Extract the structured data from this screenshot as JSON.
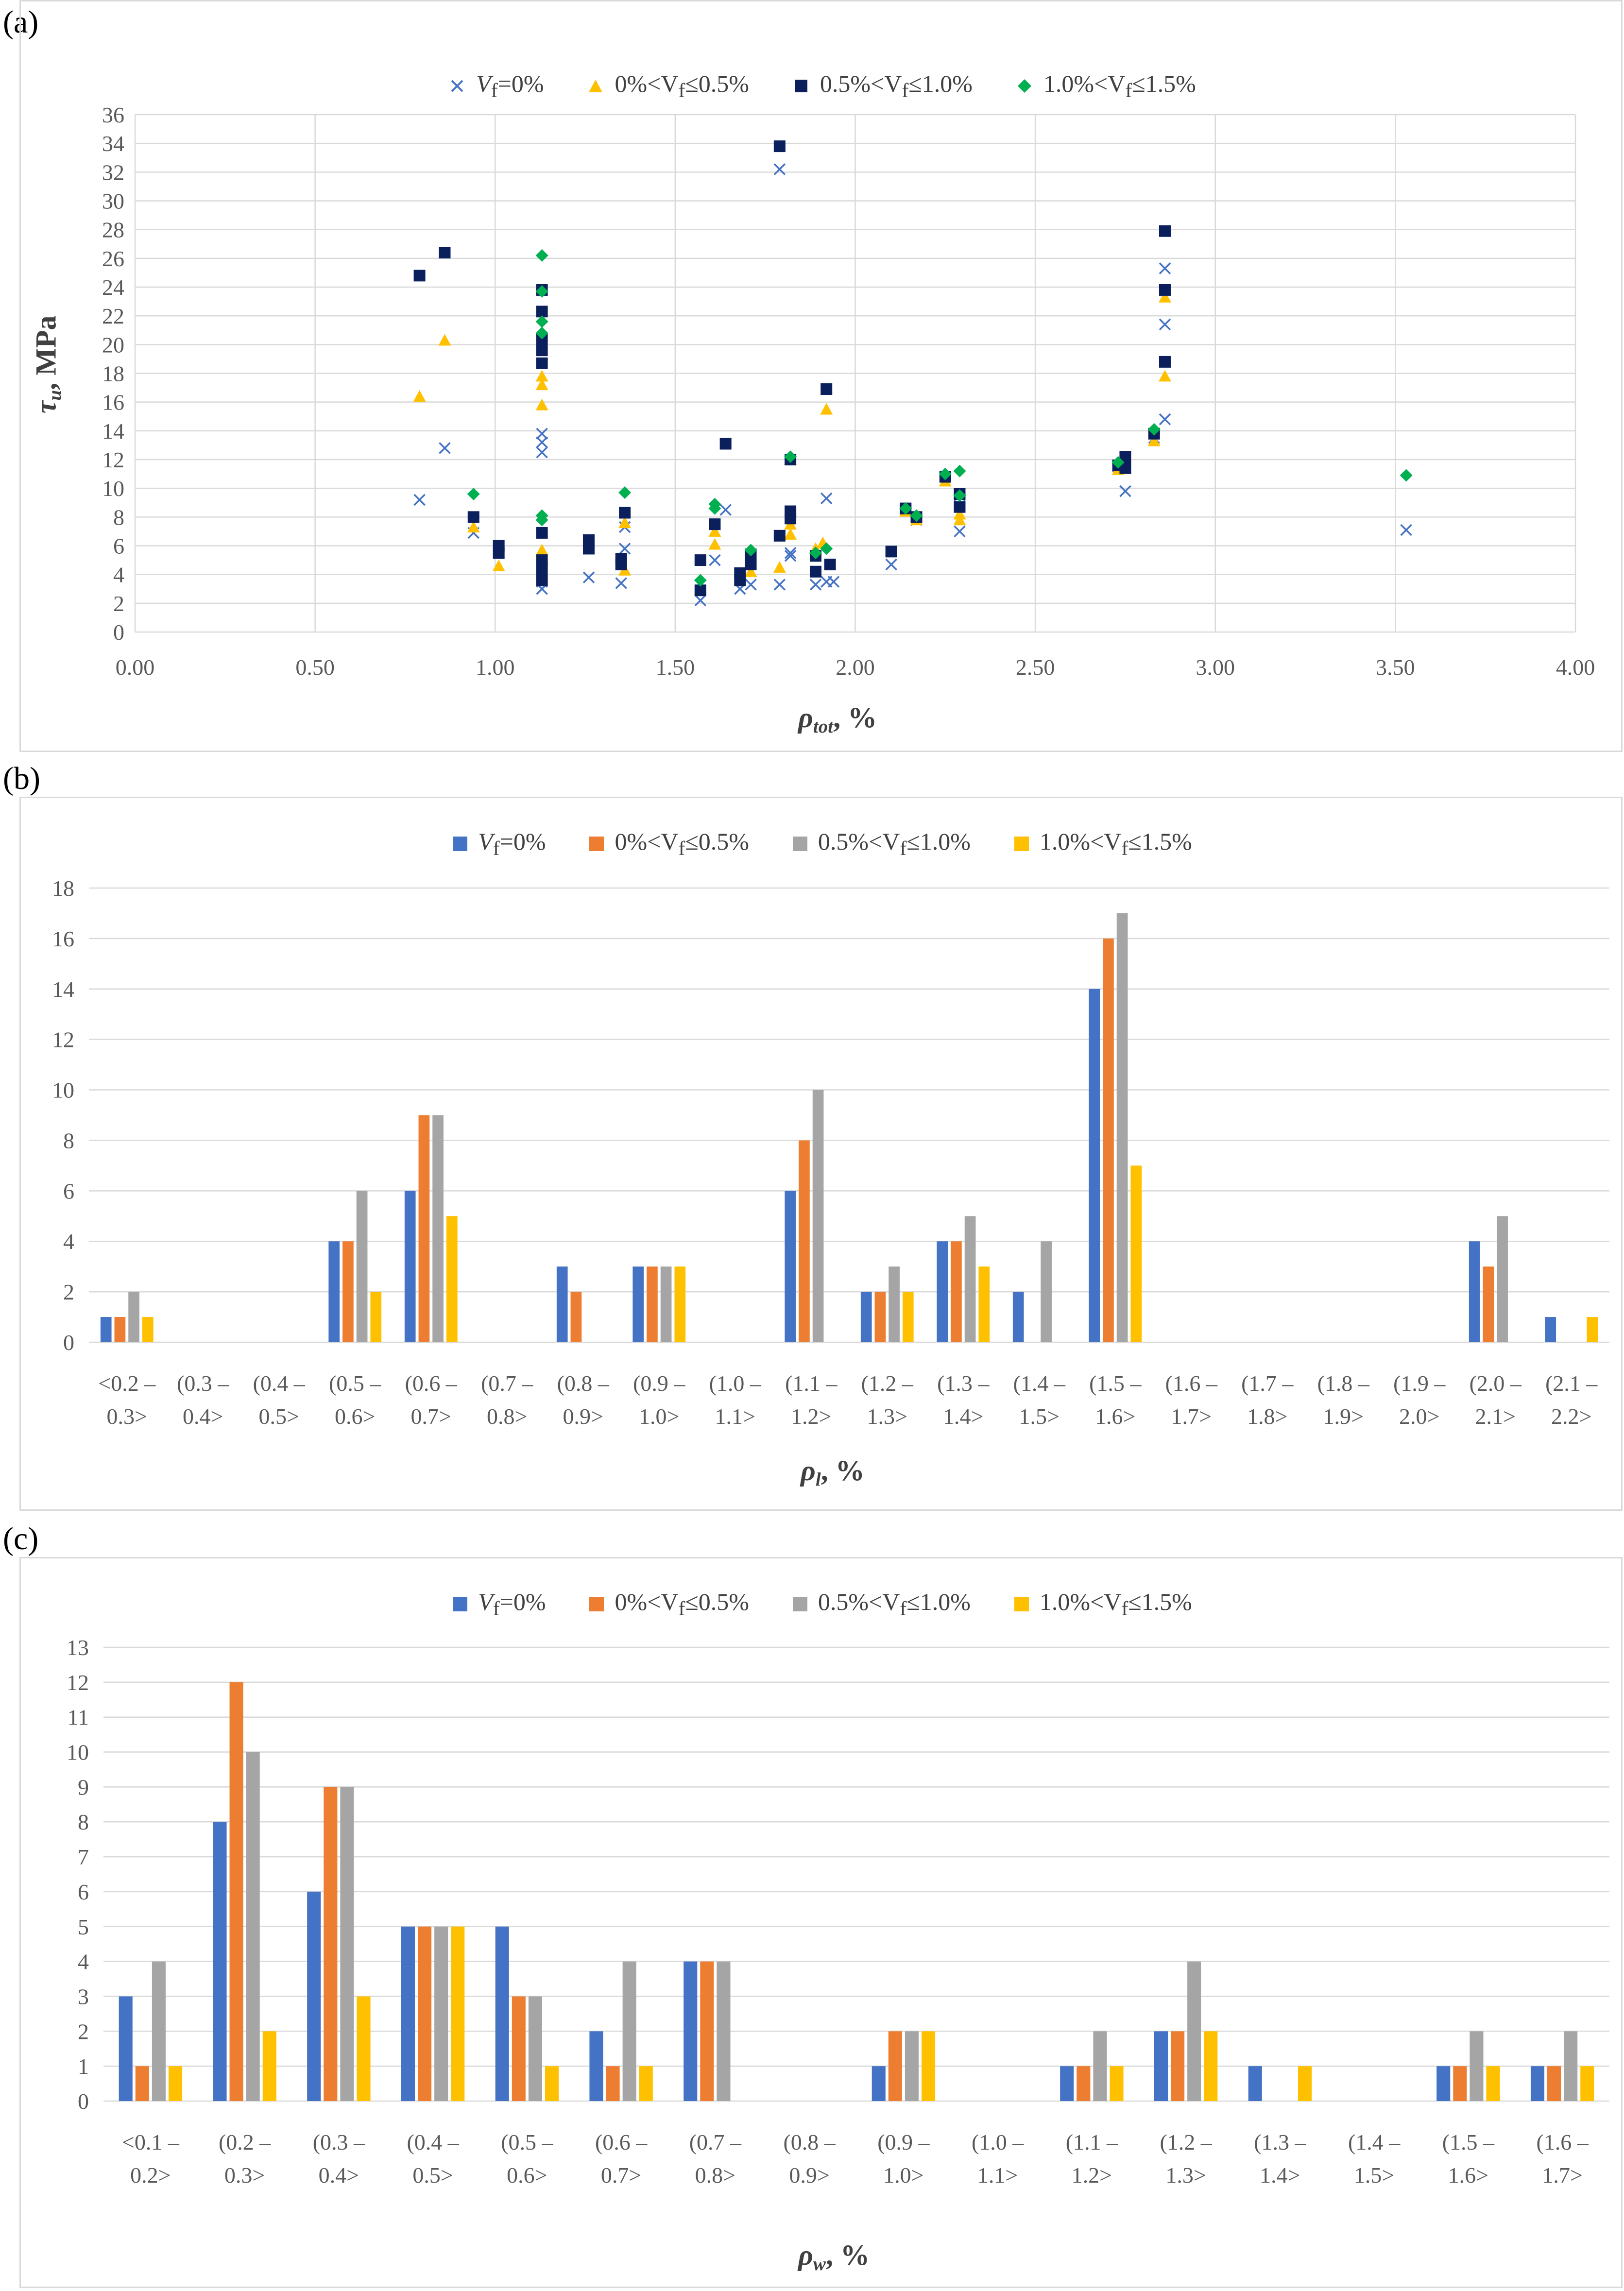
{
  "panels": [
    {
      "label": "(a)",
      "xlabel_main": "ρ",
      "xlabel_sub": "tot",
      "xlabel_unit": ", %",
      "ylabel_main": "τ",
      "ylabel_sub": "u",
      "ylabel_unit": ", MPa"
    },
    {
      "label": "(b)",
      "xlabel_main": "ρ",
      "xlabel_sub": "l",
      "xlabel_unit": ", %"
    },
    {
      "label": "(c)",
      "xlabel_main": "ρ",
      "xlabel_sub": "w",
      "xlabel_unit": ", %"
    }
  ],
  "legend": [
    {
      "pre": "V",
      "sub": "f",
      "post": "=0%",
      "color": "#4472c4"
    },
    {
      "pre": "0%<V",
      "sub": "f",
      "post": "≤0.5%",
      "color": "#ed7d31"
    },
    {
      "pre": "0.5%<V",
      "sub": "f",
      "post": "≤1.0%",
      "color": "#a5a5a5"
    },
    {
      "pre": "1.0%<V",
      "sub": "f",
      "post": "≤1.5%",
      "color": "#ffc000"
    }
  ],
  "scatter_colors": {
    "s1": "#4472c4",
    "s2": "#ffc000",
    "s3": "#0b1f5c",
    "s4": "#00b050"
  },
  "chart_data": [
    {
      "type": "scatter",
      "xlim": [
        0,
        4
      ],
      "ylim": [
        0,
        36
      ],
      "xticks": [
        "0.00",
        "0.50",
        "1.00",
        "1.50",
        "2.00",
        "2.50",
        "3.00",
        "3.50",
        "4.00"
      ],
      "yticks": [
        "0",
        "2",
        "4",
        "6",
        "8",
        "10",
        "12",
        "14",
        "16",
        "18",
        "20",
        "22",
        "24",
        "26",
        "28",
        "30",
        "32",
        "34",
        "36"
      ],
      "grid": true,
      "legend_position": "top",
      "series": [
        {
          "name": "Vf=0%",
          "marker": "x",
          "points": [
            [
              0.79,
              9.2
            ],
            [
              0.86,
              12.8
            ],
            [
              0.94,
              6.9
            ],
            [
              1.01,
              5.6
            ],
            [
              1.13,
              12.5
            ],
            [
              1.13,
              13.2
            ],
            [
              1.13,
              13.8
            ],
            [
              1.13,
              3.0
            ],
            [
              1.13,
              3.5
            ],
            [
              1.26,
              3.8
            ],
            [
              1.35,
              3.4
            ],
            [
              1.36,
              5.8
            ],
            [
              1.36,
              7.3
            ],
            [
              1.57,
              2.2
            ],
            [
              1.61,
              5.0
            ],
            [
              1.64,
              8.5
            ],
            [
              1.68,
              3.0
            ],
            [
              1.71,
              3.3
            ],
            [
              1.79,
              32.2
            ],
            [
              1.79,
              3.3
            ],
            [
              1.82,
              5.3
            ],
            [
              1.82,
              5.5
            ],
            [
              1.89,
              3.3
            ],
            [
              1.92,
              3.5
            ],
            [
              1.92,
              9.3
            ],
            [
              1.94,
              3.5
            ],
            [
              2.1,
              4.7
            ],
            [
              2.14,
              8.5
            ],
            [
              2.17,
              7.8
            ],
            [
              2.25,
              10.8
            ],
            [
              2.29,
              7.0
            ],
            [
              2.29,
              9.5
            ],
            [
              2.73,
              11.5
            ],
            [
              2.75,
              9.8
            ],
            [
              2.83,
              13.5
            ],
            [
              2.86,
              14.8
            ],
            [
              2.86,
              21.4
            ],
            [
              2.86,
              25.3
            ],
            [
              3.53,
              7.1
            ]
          ]
        },
        {
          "name": "0%<Vf≤0.5%",
          "marker": "triangle",
          "points": [
            [
              0.79,
              16.4
            ],
            [
              0.86,
              20.3
            ],
            [
              0.94,
              7.3
            ],
            [
              1.01,
              4.6
            ],
            [
              1.13,
              15.8
            ],
            [
              1.13,
              17.2
            ],
            [
              1.13,
              17.8
            ],
            [
              1.13,
              5.7
            ],
            [
              1.13,
              3.8
            ],
            [
              1.36,
              4.3
            ],
            [
              1.36,
              7.6
            ],
            [
              1.57,
              3.0
            ],
            [
              1.61,
              6.1
            ],
            [
              1.61,
              7.0
            ],
            [
              1.71,
              4.2
            ],
            [
              1.79,
              4.5
            ],
            [
              1.82,
              6.8
            ],
            [
              1.82,
              7.5
            ],
            [
              1.82,
              12.0
            ],
            [
              1.89,
              5.8
            ],
            [
              1.91,
              6.2
            ],
            [
              1.92,
              15.5
            ],
            [
              2.14,
              8.4
            ],
            [
              2.17,
              7.8
            ],
            [
              2.25,
              10.5
            ],
            [
              2.29,
              7.8
            ],
            [
              2.29,
              8.2
            ],
            [
              2.73,
              11.3
            ],
            [
              2.83,
              13.3
            ],
            [
              2.86,
              17.8
            ],
            [
              2.86,
              23.3
            ]
          ]
        },
        {
          "name": "0.5%<Vf≤1.0%",
          "marker": "square",
          "points": [
            [
              0.79,
              24.8
            ],
            [
              0.86,
              26.4
            ],
            [
              0.94,
              8.0
            ],
            [
              1.01,
              5.5
            ],
            [
              1.01,
              6.0
            ],
            [
              1.13,
              23.8
            ],
            [
              1.13,
              22.3
            ],
            [
              1.13,
              20.4
            ],
            [
              1.13,
              19.6
            ],
            [
              1.13,
              18.7
            ],
            [
              1.13,
              6.9
            ],
            [
              1.13,
              5.0
            ],
            [
              1.13,
              4.4
            ],
            [
              1.13,
              3.6
            ],
            [
              1.26,
              5.8
            ],
            [
              1.26,
              6.4
            ],
            [
              1.35,
              4.7
            ],
            [
              1.35,
              5.1
            ],
            [
              1.36,
              8.3
            ],
            [
              1.57,
              5.0
            ],
            [
              1.57,
              2.9
            ],
            [
              1.61,
              7.5
            ],
            [
              1.64,
              13.1
            ],
            [
              1.68,
              3.6
            ],
            [
              1.68,
              4.1
            ],
            [
              1.71,
              4.7
            ],
            [
              1.71,
              5.4
            ],
            [
              1.79,
              33.8
            ],
            [
              1.79,
              6.7
            ],
            [
              1.82,
              7.9
            ],
            [
              1.82,
              8.4
            ],
            [
              1.82,
              12.0
            ],
            [
              1.89,
              4.2
            ],
            [
              1.89,
              5.3
            ],
            [
              1.92,
              16.9
            ],
            [
              1.93,
              4.7
            ],
            [
              2.1,
              5.6
            ],
            [
              2.14,
              8.6
            ],
            [
              2.17,
              8.0
            ],
            [
              2.25,
              10.8
            ],
            [
              2.29,
              8.7
            ],
            [
              2.29,
              9.6
            ],
            [
              2.73,
              11.6
            ],
            [
              2.75,
              11.4
            ],
            [
              2.75,
              12.2
            ],
            [
              2.83,
              13.8
            ],
            [
              2.86,
              18.8
            ],
            [
              2.86,
              23.8
            ],
            [
              2.86,
              27.9
            ]
          ]
        },
        {
          "name": "1.0%<Vf≤1.5%",
          "marker": "diamond",
          "points": [
            [
              0.94,
              9.6
            ],
            [
              1.13,
              26.2
            ],
            [
              1.13,
              23.7
            ],
            [
              1.13,
              21.6
            ],
            [
              1.13,
              20.8
            ],
            [
              1.13,
              8.1
            ],
            [
              1.13,
              7.8
            ],
            [
              1.36,
              9.7
            ],
            [
              1.57,
              3.6
            ],
            [
              1.61,
              8.6
            ],
            [
              1.61,
              8.9
            ],
            [
              1.71,
              5.7
            ],
            [
              1.82,
              12.2
            ],
            [
              1.89,
              5.5
            ],
            [
              1.92,
              5.8
            ],
            [
              2.14,
              8.6
            ],
            [
              2.17,
              8.1
            ],
            [
              2.25,
              11.0
            ],
            [
              2.29,
              11.2
            ],
            [
              2.29,
              9.5
            ],
            [
              2.73,
              11.8
            ],
            [
              2.83,
              14.1
            ],
            [
              3.53,
              10.9
            ]
          ]
        }
      ]
    },
    {
      "type": "bar",
      "categories": [
        [
          "<0.2 –",
          "0.3>"
        ],
        [
          "(0.3 –",
          "0.4>"
        ],
        [
          "(0.4 –",
          "0.5>"
        ],
        [
          "(0.5 –",
          "0.6>"
        ],
        [
          "(0.6 –",
          "0.7>"
        ],
        [
          "(0.7 –",
          "0.8>"
        ],
        [
          "(0.8 –",
          "0.9>"
        ],
        [
          "(0.9 –",
          "1.0>"
        ],
        [
          "(1.0 –",
          "1.1>"
        ],
        [
          "(1.1 –",
          "1.2>"
        ],
        [
          "(1.2 –",
          "1.3>"
        ],
        [
          "(1.3 –",
          "1.4>"
        ],
        [
          "(1.4 –",
          "1.5>"
        ],
        [
          "(1.5 –",
          "1.6>"
        ],
        [
          "(1.6 –",
          "1.7>"
        ],
        [
          "(1.7 –",
          "1.8>"
        ],
        [
          "(1.8 –",
          "1.9>"
        ],
        [
          "(1.9 –",
          "2.0>"
        ],
        [
          "(2.0 –",
          "2.1>"
        ],
        [
          "(2.1 –",
          "2.2>"
        ]
      ],
      "ylim": [
        0,
        18
      ],
      "yticks": [
        "0",
        "2",
        "4",
        "6",
        "8",
        "10",
        "12",
        "14",
        "16",
        "18"
      ],
      "grid": true,
      "legend_position": "top",
      "series": [
        {
          "name": "Vf=0%",
          "values": [
            1,
            0,
            0,
            4,
            6,
            0,
            3,
            3,
            0,
            6,
            2,
            4,
            2,
            14,
            0,
            0,
            0,
            0,
            4,
            1
          ]
        },
        {
          "name": "0%<Vf≤0.5%",
          "values": [
            1,
            0,
            0,
            4,
            9,
            0,
            2,
            3,
            0,
            8,
            2,
            4,
            0,
            16,
            0,
            0,
            0,
            0,
            3,
            0
          ]
        },
        {
          "name": "0.5%<Vf≤1.0%",
          "values": [
            2,
            0,
            0,
            6,
            9,
            0,
            0,
            3,
            0,
            10,
            3,
            5,
            4,
            17,
            0,
            0,
            0,
            0,
            5,
            0
          ]
        },
        {
          "name": "1.0%<Vf≤1.5%",
          "values": [
            1,
            0,
            0,
            2,
            5,
            0,
            0,
            3,
            0,
            0,
            2,
            3,
            0,
            7,
            0,
            0,
            0,
            0,
            0,
            1
          ]
        }
      ]
    },
    {
      "type": "bar",
      "categories": [
        [
          "<0.1 –",
          "0.2>"
        ],
        [
          "(0.2 –",
          "0.3>"
        ],
        [
          "(0.3 –",
          "0.4>"
        ],
        [
          "(0.4 –",
          "0.5>"
        ],
        [
          "(0.5 –",
          "0.6>"
        ],
        [
          "(0.6 –",
          "0.7>"
        ],
        [
          "(0.7 –",
          "0.8>"
        ],
        [
          "(0.8 –",
          "0.9>"
        ],
        [
          "(0.9 –",
          "1.0>"
        ],
        [
          "(1.0 –",
          "1.1>"
        ],
        [
          "(1.1 –",
          "1.2>"
        ],
        [
          "(1.2 –",
          "1.3>"
        ],
        [
          "(1.3 –",
          "1.4>"
        ],
        [
          "(1.4 –",
          "1.5>"
        ],
        [
          "(1.5 –",
          "1.6>"
        ],
        [
          "(1.6 –",
          "1.7>"
        ]
      ],
      "ylim": [
        0,
        13
      ],
      "yticks": [
        "0",
        "1",
        "2",
        "3",
        "4",
        "5",
        "6",
        "7",
        "8",
        "9",
        "10",
        "11",
        "12",
        "13"
      ],
      "grid": true,
      "legend_position": "top",
      "series": [
        {
          "name": "Vf=0%",
          "values": [
            3,
            8,
            6,
            5,
            5,
            2,
            4,
            0,
            1,
            0,
            1,
            2,
            1,
            0,
            1,
            1
          ]
        },
        {
          "name": "0%<Vf≤0.5%",
          "values": [
            1,
            12,
            9,
            5,
            3,
            1,
            4,
            0,
            2,
            0,
            1,
            2,
            0,
            0,
            1,
            1
          ]
        },
        {
          "name": "0.5%<Vf≤1.0%",
          "values": [
            4,
            10,
            9,
            5,
            3,
            4,
            4,
            0,
            2,
            0,
            2,
            4,
            0,
            0,
            2,
            2
          ]
        },
        {
          "name": "1.0%<Vf≤1.5%",
          "values": [
            1,
            2,
            3,
            5,
            1,
            1,
            0,
            0,
            2,
            0,
            1,
            2,
            1,
            0,
            1,
            1
          ]
        }
      ]
    }
  ]
}
